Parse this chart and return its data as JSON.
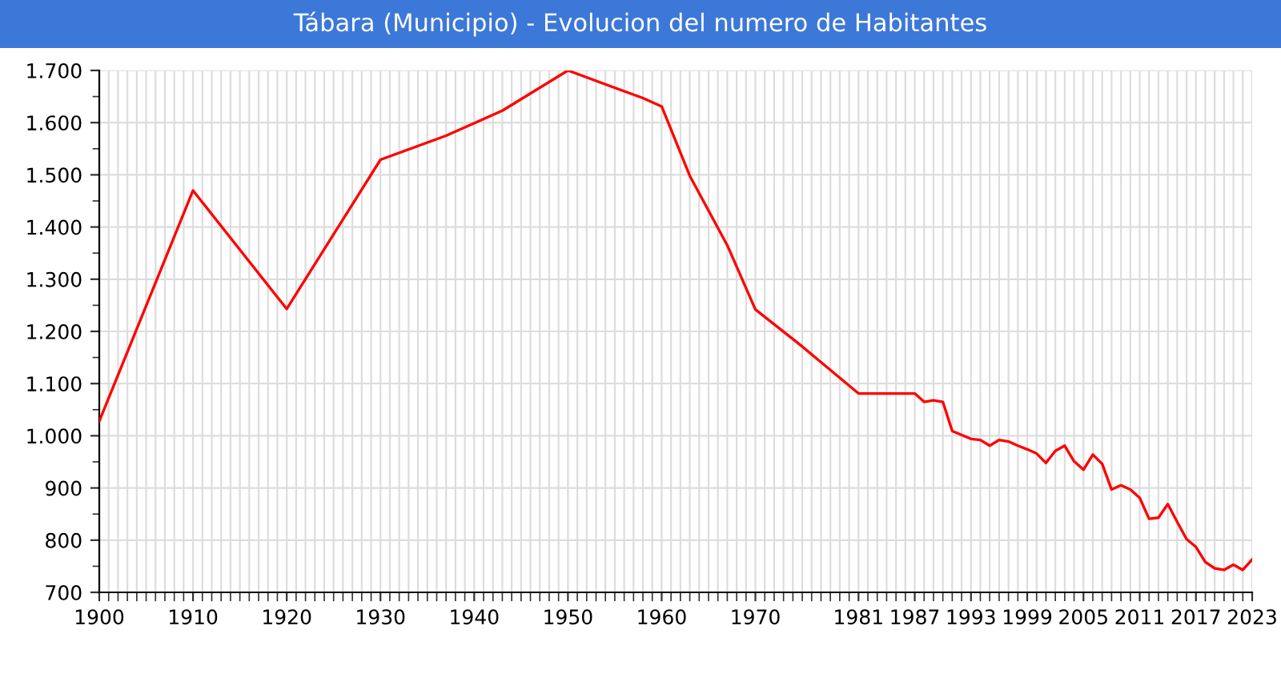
{
  "chart_data": {
    "type": "line",
    "title": "Tábara (Municipio) - Evolucion del numero de Habitantes",
    "x": [
      1900,
      1910,
      1920,
      1930,
      1937,
      1943,
      1950,
      1958,
      1960,
      1963,
      1967,
      1970,
      1975,
      1981,
      1987,
      1988,
      1989,
      1990,
      1991,
      1993,
      1994,
      1995,
      1996,
      1997,
      1998,
      1999,
      2000,
      2001,
      2002,
      2003,
      2004,
      2005,
      2006,
      2007,
      2008,
      2009,
      2010,
      2011,
      2012,
      2013,
      2014,
      2015,
      2016,
      2017,
      2018,
      2019,
      2020,
      2021,
      2022,
      2023
    ],
    "series": [
      {
        "color": "#ff0000",
        "values": [
          1028,
          1470,
          1243,
          1529,
          1575,
          1623,
          1700,
          1647,
          1631,
          1498,
          1365,
          1242,
          1171,
          1081,
          1081,
          1065,
          1068,
          1065,
          1009,
          994,
          992,
          981,
          992,
          989,
          981,
          974,
          966,
          948,
          971,
          981,
          951,
          935,
          964,
          946,
          897,
          905,
          897,
          881,
          841,
          843,
          869,
          835,
          802,
          787,
          758,
          746,
          743,
          753,
          743,
          763
        ]
      }
    ],
    "xlim": [
      1900,
      2023
    ],
    "xticks": [
      1900,
      1910,
      1920,
      1930,
      1940,
      1950,
      1960,
      1970,
      1981,
      1987,
      1993,
      1999,
      2005,
      2011,
      2017,
      2023
    ],
    "ylim": [
      700,
      1700
    ],
    "yticks": [
      700,
      800,
      900,
      {
        "value": 1000,
        "label": "1.000"
      },
      {
        "value": 1100,
        "label": "1.100"
      },
      {
        "value": 1200,
        "label": "1.200"
      },
      {
        "value": 1300,
        "label": "1.300"
      },
      {
        "value": 1400,
        "label": "1.400"
      },
      {
        "value": 1500,
        "label": "1.500"
      },
      {
        "value": 1600,
        "label": "1.600"
      },
      {
        "value": 1700,
        "label": "1.700"
      }
    ],
    "grid": true,
    "marker": "none",
    "line_style": "solid"
  }
}
